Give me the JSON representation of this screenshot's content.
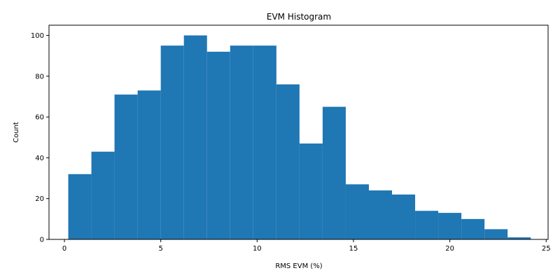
{
  "chart_data": {
    "type": "bar",
    "title": "EVM Histogram",
    "xlabel": "RMS EVM (%)",
    "ylabel": "Count",
    "xlim": [
      -0.8,
      25.1
    ],
    "ylim": [
      0,
      105
    ],
    "xticks": [
      0,
      5,
      10,
      15,
      20,
      25
    ],
    "yticks": [
      0,
      20,
      40,
      60,
      80,
      100
    ],
    "bar_color": "#1f77b4",
    "bins": [
      {
        "x0": 0.2,
        "x1": 1.4,
        "count": 32
      },
      {
        "x0": 1.4,
        "x1": 2.6,
        "count": 43
      },
      {
        "x0": 2.6,
        "x1": 3.8,
        "count": 71
      },
      {
        "x0": 3.8,
        "x1": 5.0,
        "count": 73
      },
      {
        "x0": 5.0,
        "x1": 6.2,
        "count": 95
      },
      {
        "x0": 6.2,
        "x1": 7.4,
        "count": 100
      },
      {
        "x0": 7.4,
        "x1": 8.6,
        "count": 92
      },
      {
        "x0": 8.6,
        "x1": 9.8,
        "count": 95
      },
      {
        "x0": 9.8,
        "x1": 11.0,
        "count": 95
      },
      {
        "x0": 11.0,
        "x1": 12.2,
        "count": 76
      },
      {
        "x0": 12.2,
        "x1": 13.4,
        "count": 47
      },
      {
        "x0": 13.4,
        "x1": 14.6,
        "count": 65
      },
      {
        "x0": 14.6,
        "x1": 15.8,
        "count": 27
      },
      {
        "x0": 15.8,
        "x1": 17.0,
        "count": 24
      },
      {
        "x0": 17.0,
        "x1": 18.2,
        "count": 22
      },
      {
        "x0": 18.2,
        "x1": 19.4,
        "count": 14
      },
      {
        "x0": 19.4,
        "x1": 20.6,
        "count": 13
      },
      {
        "x0": 20.6,
        "x1": 21.8,
        "count": 10
      },
      {
        "x0": 21.8,
        "x1": 23.0,
        "count": 5
      },
      {
        "x0": 23.0,
        "x1": 24.2,
        "count": 1
      }
    ]
  }
}
